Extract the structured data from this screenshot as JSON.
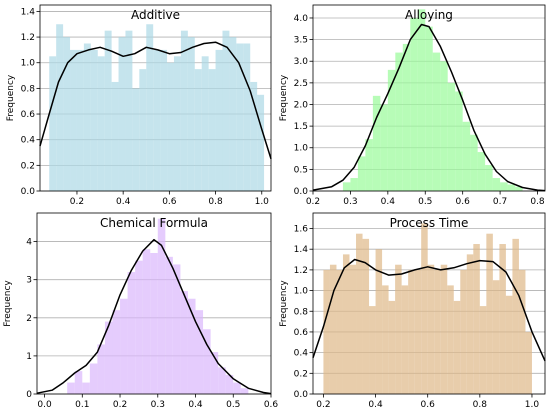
{
  "chart_data": [
    {
      "type": "histogram",
      "title": "Additive",
      "ylabel": "Frequency",
      "xlabel": "",
      "color": "#add8e6",
      "curve_color": "#000000",
      "grid": "y",
      "xlim": [
        0.04,
        1.04
      ],
      "ylim": [
        0,
        1.45
      ],
      "xticks": [
        0.2,
        0.4,
        0.6,
        0.8,
        1.0
      ],
      "xtick_labels": [
        "0.2",
        "0.4",
        "0.6",
        "0.8",
        "1.0"
      ],
      "yticks": [
        0.0,
        0.2,
        0.4,
        0.6,
        0.8,
        1.0,
        1.2,
        1.4
      ],
      "ytick_labels": [
        "0.0",
        "0.2",
        "0.4",
        "0.6",
        "0.8",
        "1.0",
        "1.2",
        "1.4"
      ],
      "bin_edges": [
        0.08,
        0.11,
        0.14,
        0.17,
        0.2,
        0.23,
        0.26,
        0.29,
        0.32,
        0.35,
        0.38,
        0.41,
        0.44,
        0.47,
        0.5,
        0.53,
        0.56,
        0.59,
        0.62,
        0.65,
        0.68,
        0.71,
        0.74,
        0.77,
        0.8,
        0.83,
        0.86,
        0.89,
        0.92,
        0.95,
        0.98,
        1.01
      ],
      "bin_values": [
        1.05,
        1.3,
        1.2,
        1.1,
        1.1,
        1.15,
        1.1,
        1.05,
        1.25,
        0.85,
        1.2,
        1.25,
        0.8,
        0.95,
        1.3,
        1.1,
        1.1,
        1.0,
        1.05,
        1.25,
        1.2,
        0.95,
        1.05,
        0.95,
        1.1,
        1.25,
        1.2,
        1.15,
        1.15,
        0.85,
        0.75
      ],
      "kde_x": [
        0.04,
        0.08,
        0.12,
        0.16,
        0.2,
        0.25,
        0.3,
        0.35,
        0.4,
        0.45,
        0.5,
        0.55,
        0.6,
        0.65,
        0.7,
        0.75,
        0.8,
        0.85,
        0.9,
        0.95,
        1.0,
        1.04
      ],
      "kde_y": [
        0.35,
        0.6,
        0.85,
        1.0,
        1.07,
        1.1,
        1.12,
        1.09,
        1.05,
        1.07,
        1.12,
        1.1,
        1.07,
        1.08,
        1.12,
        1.15,
        1.16,
        1.12,
        1.0,
        0.78,
        0.48,
        0.25
      ]
    },
    {
      "type": "histogram",
      "title": "Alloying",
      "ylabel": "Frequency",
      "xlabel": "",
      "color": "#98fb98",
      "curve_color": "#000000",
      "grid": "y",
      "xlim": [
        0.2,
        0.82
      ],
      "ylim": [
        0,
        4.3
      ],
      "xticks": [
        0.2,
        0.3,
        0.4,
        0.5,
        0.6,
        0.7,
        0.8
      ],
      "xtick_labels": [
        "0.2",
        "0.3",
        "0.4",
        "0.5",
        "0.6",
        "0.7",
        "0.8"
      ],
      "yticks": [
        0.0,
        0.5,
        1.0,
        1.5,
        2.0,
        2.5,
        3.0,
        3.5,
        4.0
      ],
      "ytick_labels": [
        "0.0",
        "0.5",
        "1.0",
        "1.5",
        "2.0",
        "2.5",
        "3.0",
        "3.5",
        "4.0"
      ],
      "bin_edges": [
        0.28,
        0.3,
        0.32,
        0.34,
        0.36,
        0.38,
        0.4,
        0.42,
        0.44,
        0.46,
        0.48,
        0.5,
        0.52,
        0.54,
        0.56,
        0.58,
        0.6,
        0.62,
        0.64,
        0.66,
        0.68,
        0.7,
        0.72,
        0.74,
        0.76
      ],
      "bin_values": [
        0.2,
        0.3,
        0.8,
        1.2,
        2.2,
        2.0,
        2.8,
        3.2,
        3.4,
        4.0,
        4.2,
        3.8,
        3.2,
        3.0,
        2.5,
        2.3,
        1.6,
        1.3,
        0.9,
        0.6,
        0.3,
        0.2,
        0.15,
        0.1
      ],
      "kde_x": [
        0.2,
        0.25,
        0.28,
        0.31,
        0.34,
        0.37,
        0.4,
        0.43,
        0.46,
        0.49,
        0.51,
        0.54,
        0.57,
        0.6,
        0.63,
        0.66,
        0.69,
        0.72,
        0.76,
        0.8,
        0.82
      ],
      "kde_y": [
        0.02,
        0.1,
        0.25,
        0.55,
        1.05,
        1.7,
        2.25,
        2.85,
        3.5,
        3.85,
        3.8,
        3.35,
        2.75,
        2.1,
        1.4,
        0.85,
        0.45,
        0.22,
        0.08,
        0.02,
        0.01
      ]
    },
    {
      "type": "histogram",
      "title": "Chemical Formula",
      "ylabel": "Frequency",
      "xlabel": "",
      "color": "#dab6fc",
      "curve_color": "#000000",
      "grid": "y",
      "xlim": [
        -0.02,
        0.6
      ],
      "ylim": [
        0,
        4.75
      ],
      "xticks": [
        0.0,
        0.1,
        0.2,
        0.3,
        0.4,
        0.5,
        0.6
      ],
      "xtick_labels": [
        "0.0",
        "0.1",
        "0.2",
        "0.3",
        "0.4",
        "0.5",
        "0.6"
      ],
      "yticks": [
        0,
        1,
        2,
        3,
        4
      ],
      "ytick_labels": [
        "0",
        "1",
        "2",
        "3",
        "4"
      ],
      "bin_edges": [
        0.06,
        0.08,
        0.1,
        0.12,
        0.14,
        0.16,
        0.18,
        0.2,
        0.22,
        0.24,
        0.26,
        0.28,
        0.3,
        0.32,
        0.34,
        0.36,
        0.38,
        0.4,
        0.42,
        0.44,
        0.46,
        0.48,
        0.5,
        0.52,
        0.54
      ],
      "bin_values": [
        0.3,
        0.6,
        0.3,
        0.8,
        1.3,
        1.9,
        2.2,
        2.5,
        3.2,
        3.5,
        3.8,
        3.7,
        4.6,
        3.6,
        3.4,
        2.7,
        2.5,
        2.2,
        1.7,
        1.1,
        0.7,
        0.5,
        0.3,
        0.15
      ],
      "kde_x": [
        -0.02,
        0.02,
        0.05,
        0.08,
        0.11,
        0.14,
        0.17,
        0.2,
        0.23,
        0.26,
        0.29,
        0.31,
        0.34,
        0.37,
        0.4,
        0.43,
        0.46,
        0.5,
        0.54,
        0.58,
        0.6
      ],
      "kde_y": [
        0.02,
        0.1,
        0.3,
        0.55,
        0.75,
        1.1,
        1.8,
        2.6,
        3.25,
        3.75,
        4.05,
        3.9,
        3.3,
        2.6,
        1.9,
        1.3,
        0.8,
        0.4,
        0.15,
        0.04,
        0.01
      ]
    },
    {
      "type": "histogram",
      "title": "Process Time",
      "ylabel": "Frequency",
      "xlabel": "",
      "color": "#deb887",
      "curve_color": "#000000",
      "grid": "y",
      "xlim": [
        0.16,
        1.05
      ],
      "ylim": [
        0,
        1.75
      ],
      "xticks": [
        0.2,
        0.4,
        0.6,
        0.8,
        1.0
      ],
      "xtick_labels": [
        "0.2",
        "0.4",
        "0.6",
        "0.8",
        "1.0"
      ],
      "yticks": [
        0.0,
        0.2,
        0.4,
        0.6,
        0.8,
        1.0,
        1.2,
        1.4,
        1.6
      ],
      "ytick_labels": [
        "0.0",
        "0.2",
        "0.4",
        "0.6",
        "0.8",
        "1.0",
        "1.2",
        "1.4",
        "1.6"
      ],
      "bin_edges": [
        0.2,
        0.225,
        0.25,
        0.275,
        0.3,
        0.325,
        0.35,
        0.375,
        0.4,
        0.425,
        0.45,
        0.475,
        0.5,
        0.525,
        0.55,
        0.575,
        0.6,
        0.625,
        0.65,
        0.675,
        0.7,
        0.725,
        0.75,
        0.775,
        0.8,
        0.825,
        0.85,
        0.875,
        0.9,
        0.925,
        0.95,
        0.975,
        1.0
      ],
      "bin_values": [
        1.2,
        1.25,
        1.2,
        1.35,
        1.25,
        1.55,
        1.5,
        0.85,
        1.4,
        1.05,
        0.9,
        1.25,
        1.05,
        1.2,
        1.2,
        1.65,
        1.25,
        1.2,
        1.25,
        1.05,
        0.9,
        1.2,
        1.35,
        1.45,
        0.85,
        1.55,
        1.1,
        1.45,
        0.95,
        1.5,
        1.2,
        0.6
      ],
      "kde_x": [
        0.16,
        0.2,
        0.24,
        0.28,
        0.32,
        0.36,
        0.4,
        0.45,
        0.5,
        0.55,
        0.6,
        0.65,
        0.7,
        0.75,
        0.8,
        0.85,
        0.9,
        0.95,
        1.0,
        1.05
      ],
      "kde_y": [
        0.35,
        0.65,
        1.0,
        1.22,
        1.3,
        1.27,
        1.2,
        1.15,
        1.16,
        1.2,
        1.23,
        1.2,
        1.22,
        1.26,
        1.29,
        1.28,
        1.18,
        0.95,
        0.6,
        0.32
      ]
    }
  ]
}
